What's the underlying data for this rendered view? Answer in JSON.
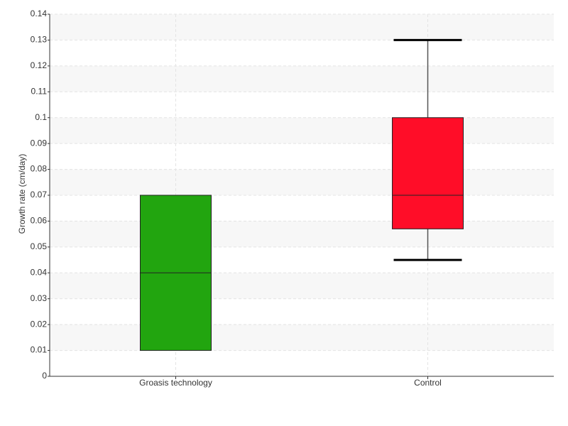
{
  "chart_data": {
    "type": "box",
    "y_label": "Growth rate (cm/day)",
    "categories": [
      "Groasis technology",
      "Control"
    ],
    "boxes": [
      {
        "color": "#22a50f",
        "min": 0.01,
        "q1": 0.01,
        "median": 0.04,
        "q3": 0.07,
        "max": 0.07
      },
      {
        "color": "#ff0d28",
        "min": 0.045,
        "q1": 0.057,
        "median": 0.07,
        "q3": 0.1,
        "max": 0.13
      }
    ],
    "ylim": [
      0,
      0.14
    ],
    "yticks": [
      0,
      0.01,
      0.02,
      0.03,
      0.04,
      0.05,
      0.06,
      0.07,
      0.08,
      0.09,
      0.1,
      0.11,
      0.12,
      0.13,
      0.14
    ],
    "grid": true
  }
}
